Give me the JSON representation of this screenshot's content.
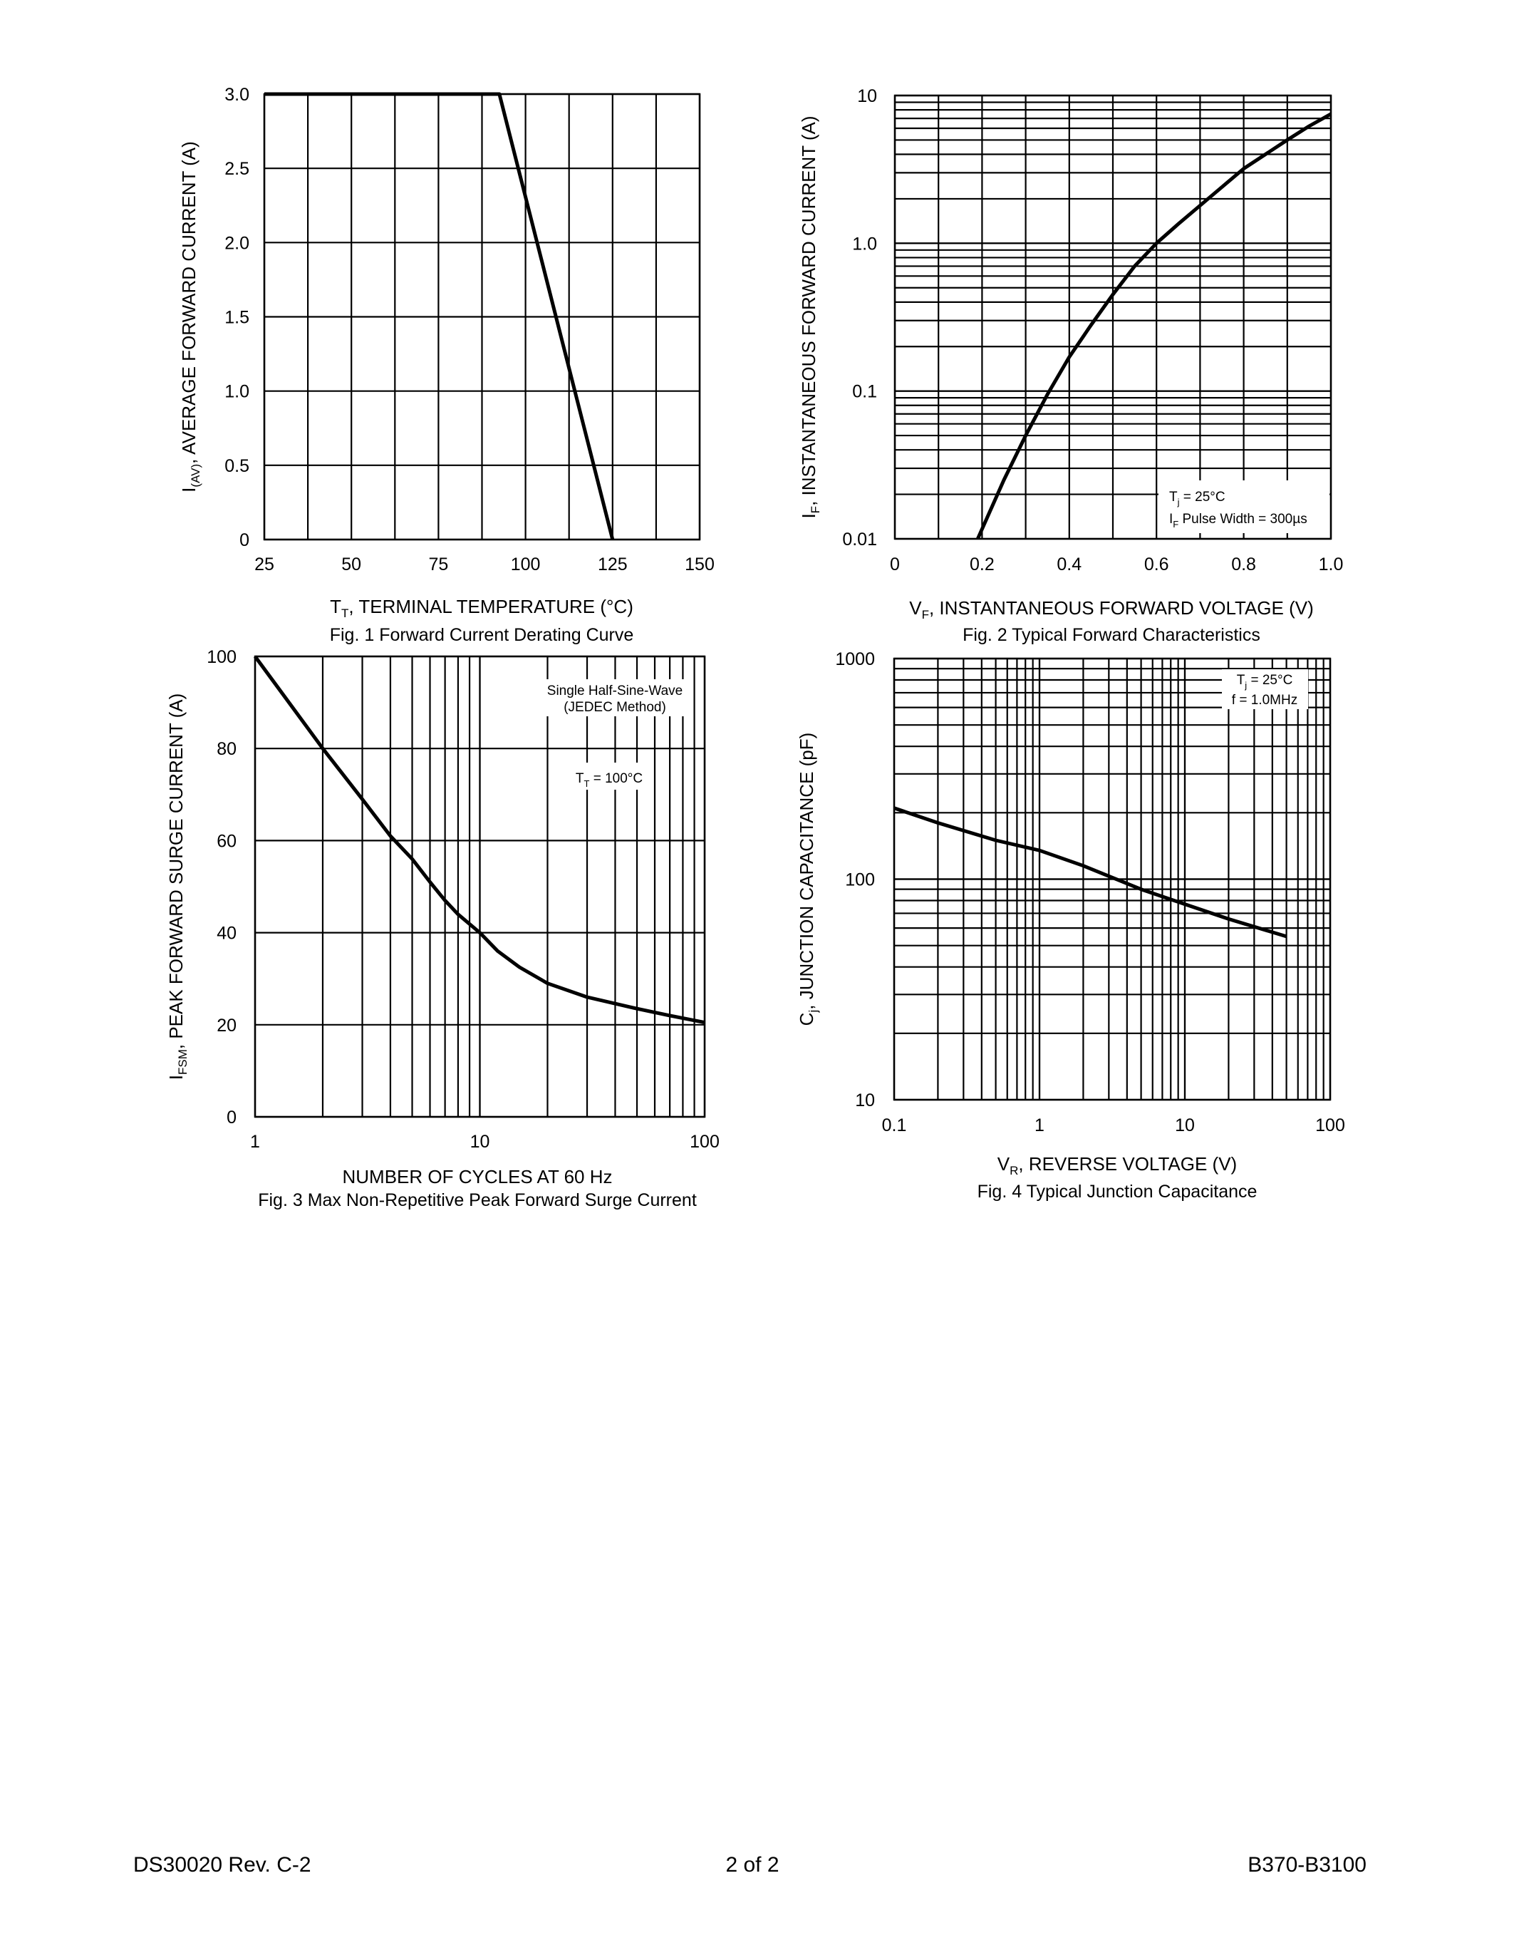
{
  "chart_data": [
    {
      "type": "line",
      "caption": "Fig. 1  Forward Current Derating Curve",
      "xlabel": {
        "main": "T",
        "sub": "T",
        "rest": ",  TERMINAL TEMPERATURE (°C)"
      },
      "ylabel": {
        "main": "I",
        "sub": "(AV)",
        "rest": ", AVERAGE FORWARD CURRENT (A)"
      },
      "xscale": "linear",
      "yscale": "linear",
      "xlim": [
        25,
        150
      ],
      "ylim": [
        0,
        3.0
      ],
      "xticks": [
        "25",
        "50",
        "75",
        "100",
        "125",
        "150"
      ],
      "xtick_values": [
        25,
        50,
        75,
        100,
        125,
        150
      ],
      "yticks": [
        "0",
        "0.5",
        "1.0",
        "1.5",
        "2.0",
        "2.5",
        "3.0"
      ],
      "ytick_values": [
        0,
        0.5,
        1.0,
        1.5,
        2.0,
        2.5,
        3.0
      ],
      "grid": true,
      "series": [
        {
          "x": [
            25,
            92.5,
            125
          ],
          "y": [
            3.0,
            3.0,
            0
          ]
        }
      ],
      "annotations": []
    },
    {
      "type": "line",
      "caption": "Fig. 2  Typical Forward Characteristics",
      "xlabel": {
        "main": "V",
        "sub": "F",
        "rest": ", INSTANTANEOUS FORWARD VOLTAGE (V)"
      },
      "ylabel": {
        "main": "I",
        "sub": "F",
        "rest": ", INSTANTANEOUS FORWARD CURRENT (A)"
      },
      "xscale": "linear",
      "yscale": "log",
      "xlim": [
        0,
        1.0
      ],
      "ylim": [
        0.01,
        10
      ],
      "xticks": [
        "0",
        "0.2",
        "0.4",
        "0.6",
        "0.8",
        "1.0"
      ],
      "xtick_values": [
        0,
        0.2,
        0.4,
        0.6,
        0.8,
        1.0
      ],
      "yticks": [
        "0.01",
        "0.1",
        "1.0",
        "10"
      ],
      "ytick_values": [
        0.01,
        0.1,
        1,
        10
      ],
      "grid": true,
      "series": [
        {
          "x": [
            0.19,
            0.25,
            0.3,
            0.35,
            0.4,
            0.45,
            0.5,
            0.55,
            0.6,
            0.65,
            0.7,
            0.75,
            0.8,
            0.85,
            0.9,
            0.95,
            1.0
          ],
          "y": [
            0.01,
            0.025,
            0.05,
            0.095,
            0.17,
            0.28,
            0.45,
            0.7,
            1.0,
            1.35,
            1.8,
            2.4,
            3.2,
            4.0,
            5.0,
            6.2,
            7.5
          ]
        }
      ],
      "annotations": [
        {
          "main": "T",
          "sub": "j",
          "rest": " = 25°C"
        },
        {
          "main": "I",
          "sub": "F",
          "rest": " Pulse Width = 300µs"
        }
      ]
    },
    {
      "type": "line",
      "caption": "Fig. 3  Max Non-Repetitive Peak Forward Surge Current",
      "xlabel": {
        "main": "NUMBER OF CYCLES AT 60 Hz",
        "sub": "",
        "rest": ""
      },
      "ylabel": {
        "main": "I",
        "sub": "FSM",
        "rest": ", PEAK FORWARD SURGE CURRENT (A)"
      },
      "xscale": "log",
      "yscale": "linear",
      "xlim": [
        1,
        100
      ],
      "ylim": [
        0,
        100
      ],
      "xticks": [
        "1",
        "10",
        "100"
      ],
      "xtick_values": [
        1,
        10,
        100
      ],
      "yticks": [
        "0",
        "20",
        "40",
        "60",
        "80",
        "100"
      ],
      "ytick_values": [
        0,
        20,
        40,
        60,
        80,
        100
      ],
      "grid": true,
      "series": [
        {
          "x": [
            1,
            2,
            3,
            4,
            5,
            6,
            7,
            8,
            10,
            12,
            15,
            20,
            30,
            50,
            70,
            100
          ],
          "y": [
            100,
            80,
            69,
            61,
            56,
            51,
            47,
            44,
            40,
            36,
            32.5,
            29,
            26,
            23.5,
            22,
            20.5
          ]
        }
      ],
      "annotations": [
        {
          "main": "Single Half-Sine-Wave",
          "sub": "",
          "rest": ""
        },
        {
          "main": "(JEDEC Method)",
          "sub": "",
          "rest": ""
        },
        {
          "main": "T",
          "sub": "T",
          "rest": " = 100°C"
        }
      ]
    },
    {
      "type": "line",
      "caption": "Fig. 4  Typical Junction Capacitance",
      "xlabel": {
        "main": "V",
        "sub": "R",
        "rest": ", REVERSE VOLTAGE (V)"
      },
      "ylabel": {
        "main": "C",
        "sub": "j",
        "rest": ", JUNCTION CAPACITANCE (pF)"
      },
      "xscale": "log",
      "yscale": "log",
      "xlim": [
        0.1,
        100
      ],
      "ylim": [
        10,
        1000
      ],
      "xticks": [
        "0.1",
        "1",
        "10",
        "100"
      ],
      "xtick_values": [
        0.1,
        1,
        10,
        100
      ],
      "yticks": [
        "10",
        "100",
        "1000"
      ],
      "ytick_values": [
        10,
        100,
        1000
      ],
      "grid": true,
      "series": [
        {
          "x": [
            0.1,
            0.2,
            0.5,
            1,
            2,
            5,
            10,
            20,
            50
          ],
          "y": [
            210,
            180,
            150,
            135,
            115,
            90,
            77,
            66,
            55
          ]
        }
      ],
      "annotations": [
        {
          "main": "T",
          "sub": "j",
          "rest": " = 25°C"
        },
        {
          "main": "f = 1.0MHz",
          "sub": "",
          "rest": ""
        }
      ]
    }
  ],
  "footer": {
    "doc_number": "DS30020 Rev. C-2",
    "page": "2 of 2",
    "part_number": "B370-B3100"
  }
}
